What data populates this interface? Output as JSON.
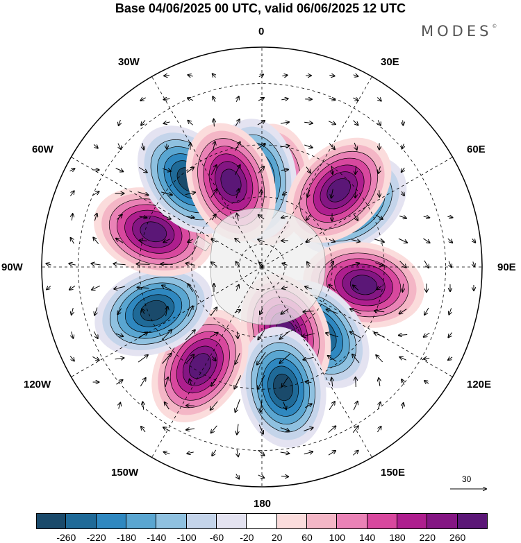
{
  "title": "Base 04/06/2025 00 UTC, valid 06/06/2025 12 UTC",
  "logo": {
    "text": "MODES",
    "mark": "©"
  },
  "longitude_labels": [
    "0",
    "30E",
    "60E",
    "90E",
    "120E",
    "150E",
    "180",
    "150W",
    "120W",
    "90W",
    "60W",
    "30W"
  ],
  "wind_reference": {
    "value": "30"
  },
  "colorbar": {
    "ticks": [
      "-260",
      "-220",
      "-180",
      "-140",
      "-100",
      "-60",
      "-20",
      "20",
      "60",
      "100",
      "140",
      "180",
      "220",
      "260"
    ],
    "colors": [
      "#1a4a6b",
      "#1f6a98",
      "#2f88c0",
      "#5aa6d1",
      "#8fc1e0",
      "#c4d4ea",
      "#e4e3f1",
      "#ffffff",
      "#fbdcdc",
      "#f4b6c6",
      "#ea82b6",
      "#d8489e",
      "#ae1e8e",
      "#841683",
      "#5b1777"
    ]
  },
  "anomaly_centers": [
    {
      "sign": "positive",
      "lon": 5,
      "lat": -55
    },
    {
      "sign": "negative",
      "lon": 55,
      "lat": -45
    },
    {
      "sign": "positive",
      "lon": 100,
      "lat": -47
    },
    {
      "sign": "negative",
      "lon": 140,
      "lat": -53
    },
    {
      "sign": "positive",
      "lon": 160,
      "lat": -60
    },
    {
      "sign": "negative",
      "lon": -5,
      "lat": -53
    },
    {
      "sign": "negative",
      "lon": 170,
      "lat": -40
    },
    {
      "sign": "positive",
      "lon": -148,
      "lat": -42
    },
    {
      "sign": "negative",
      "lon": -112,
      "lat": -42
    },
    {
      "sign": "positive",
      "lon": -72,
      "lat": -43
    },
    {
      "sign": "negative",
      "lon": -40,
      "lat": -43
    },
    {
      "sign": "positive",
      "lon": -20,
      "lat": -52
    },
    {
      "sign": "positive",
      "lon": 45,
      "lat": -45
    }
  ]
}
